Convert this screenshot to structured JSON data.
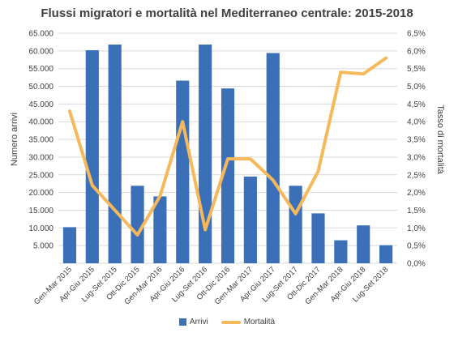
{
  "colors": {
    "bar": "#3b70b8",
    "line": "#f5b95c",
    "grid": "#d9d9d9",
    "text": "#404040"
  },
  "chart_data": {
    "type": "bar",
    "title": "Flussi migratori e mortalità nel Mediterraneo centrale: 2015-2018",
    "categories": [
      "Gen-Mar 2015",
      "Apr-Giu 2015",
      "Lug-Set 2015",
      "Ott-Dic 2015",
      "Gen-Mar 2016",
      "Apr-Giu 2016",
      "Lug-Set 2016",
      "Ott-Dic 2016",
      "Gen-Mar 2017",
      "Apr-Giu 2017",
      "Lug-Set 2017",
      "Ott-Dic 2017",
      "Gen-Mar 2018",
      "Apr-Giu 2018",
      "Lug-Set 2018"
    ],
    "series": [
      {
        "name": "Arrivi",
        "type": "bar",
        "axis": "left",
        "values": [
          10200,
          60200,
          61800,
          21900,
          18900,
          51600,
          61800,
          49400,
          24500,
          59400,
          21900,
          14100,
          6500,
          10700,
          5100
        ]
      },
      {
        "name": "Mortalità",
        "type": "line",
        "axis": "right",
        "values": [
          4.3,
          2.2,
          1.5,
          0.8,
          1.9,
          4.0,
          0.95,
          2.95,
          2.95,
          2.35,
          1.4,
          2.6,
          5.4,
          5.35,
          5.8
        ]
      }
    ],
    "ylabel": "Numero arrivi",
    "ylabel_right": "Tasso di mortalità",
    "ylim": [
      0,
      65000
    ],
    "ylim_right": [
      0,
      6.5
    ],
    "yticks": [
      "65.000",
      "60.000",
      "55.000",
      "50.000",
      "45.000",
      "40.000",
      "35.000",
      "30.000",
      "25.000",
      "20.000",
      "15.000",
      "10.000",
      "5.000"
    ],
    "yticks_right": [
      "6,5%",
      "6,0%",
      "5,5%",
      "5,0%",
      "4,5%",
      "4,0%",
      "3,5%",
      "3,0%",
      "2,5%",
      "2,0%",
      "1,5%",
      "1,0%",
      "0,5%",
      "0,0%"
    ],
    "grid": true,
    "legend": "bottom"
  }
}
